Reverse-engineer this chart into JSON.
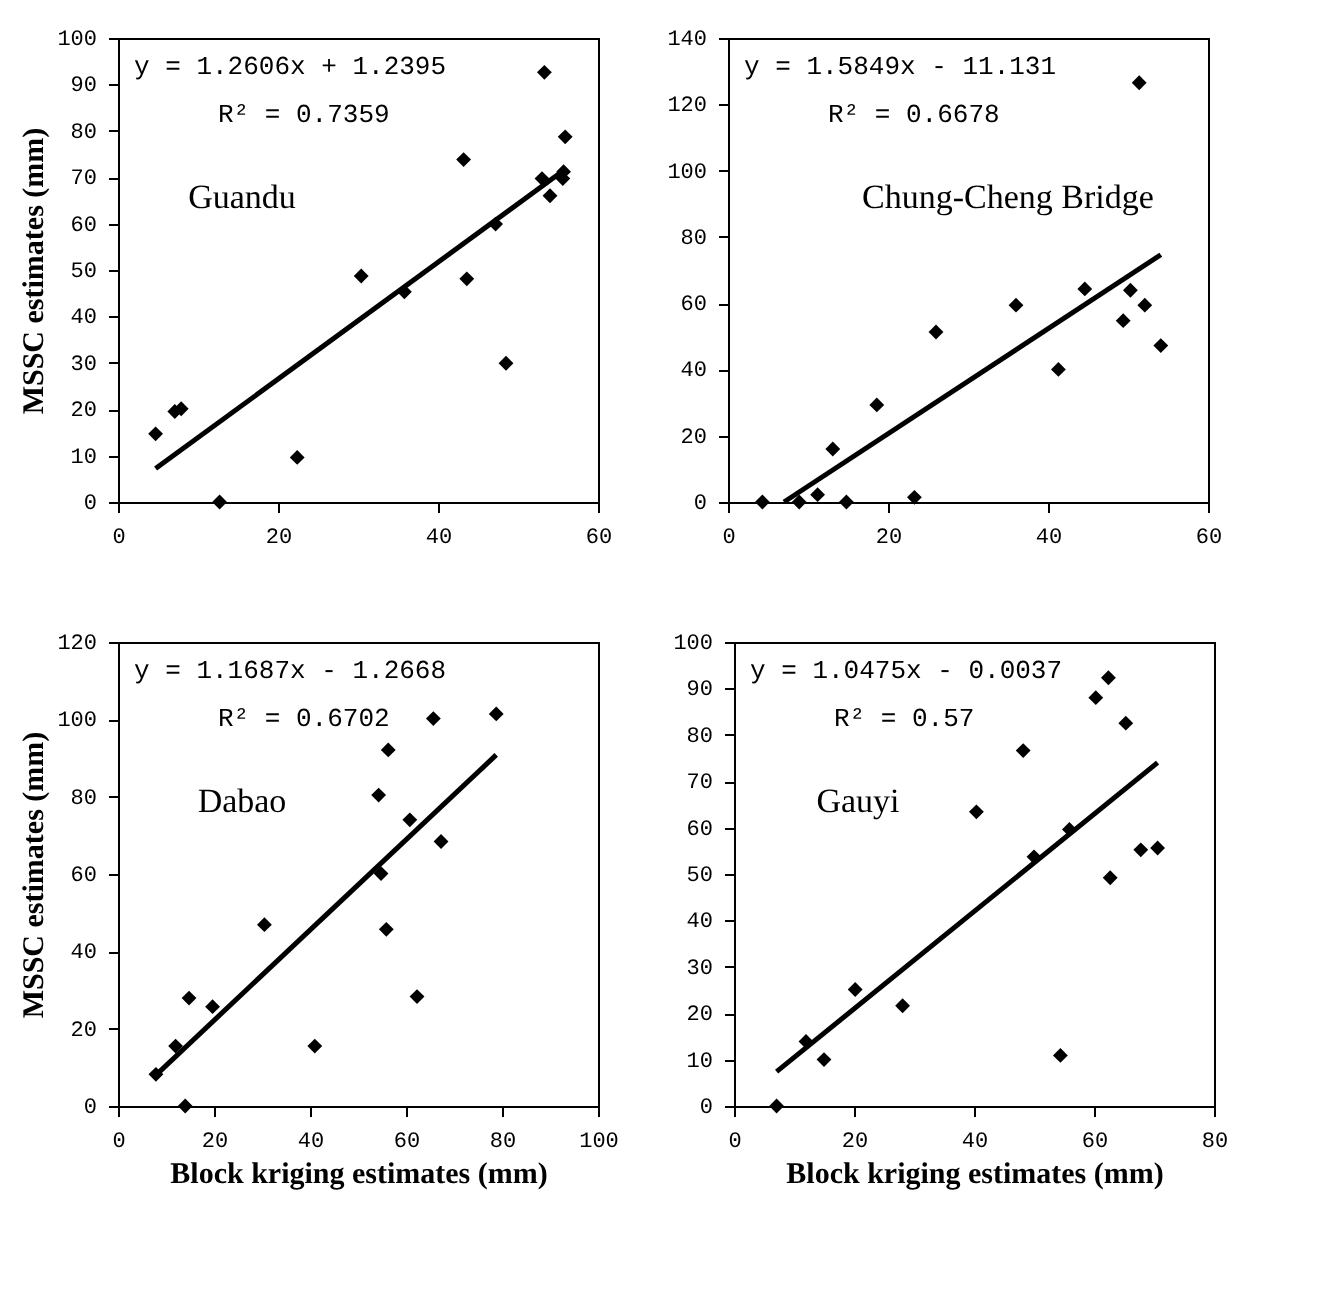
{
  "chart_data": [
    {
      "type": "scatter",
      "ylabel": "MSSC estimates (mm)",
      "xlim": [
        0,
        60
      ],
      "xticks": [
        0,
        20,
        40,
        60
      ],
      "ylim": [
        0,
        100
      ],
      "yticks": [
        0,
        10,
        20,
        30,
        40,
        50,
        60,
        70,
        80,
        90,
        100
      ],
      "grid": false,
      "annotations": [
        "y = 1.2606x + 1.2395",
        "R² = 0.7359",
        "Guandu"
      ],
      "series": [
        {
          "color": "#000000",
          "marker": "diamond",
          "x": [
            4.7,
            7.1,
            7.9,
            12.7,
            22.4,
            30.4,
            35.8,
            43.2,
            43.6,
            47.2,
            48.5,
            53.3,
            53.0,
            54.0,
            55.6,
            55.7,
            55.9
          ],
          "values": [
            14.7,
            19.5,
            20.1,
            0,
            9.6,
            48.7,
            45.3,
            73.8,
            48.1,
            59.9,
            29.9,
            92.6,
            69.7,
            66.0,
            69.7,
            71.2,
            78.7
          ]
        },
        {
          "type": "line",
          "marker": "none",
          "color": "#000000",
          "x": [
            4.7,
            55.9
          ],
          "values": [
            7.2,
            71.7
          ]
        }
      ]
    },
    {
      "type": "scatter",
      "xlim": [
        0,
        60
      ],
      "xticks": [
        0,
        20,
        40,
        60
      ],
      "ylim": [
        0,
        140
      ],
      "yticks": [
        0,
        20,
        40,
        60,
        80,
        100,
        120,
        140
      ],
      "grid": false,
      "annotations": [
        "y = 1.5849x - 11.131",
        "R² = 0.6678",
        "Chung-Cheng Bridge"
      ],
      "series": [
        {
          "color": "#000000",
          "marker": "diamond",
          "x": [
            4.3,
            8.9,
            11.2,
            13.1,
            14.8,
            18.6,
            23.3,
            26.0,
            36.0,
            41.3,
            44.6,
            49.4,
            50.3,
            51.4,
            52.1,
            54.1
          ],
          "values": [
            0,
            0,
            2.2,
            16.0,
            0,
            29.3,
            1.4,
            51.3,
            59.4,
            40.0,
            64.3,
            54.7,
            63.9,
            126.5,
            59.4,
            47.2
          ]
        },
        {
          "type": "line",
          "marker": "none",
          "color": "#000000",
          "x": [
            7.0,
            54.1
          ],
          "values": [
            0.0,
            74.6
          ]
        }
      ]
    },
    {
      "type": "scatter",
      "xlabel": "Block kriging estimates (mm)",
      "ylabel": "MSSC estimates (mm)",
      "xlim": [
        0,
        100
      ],
      "xticks": [
        0,
        20,
        40,
        60,
        80,
        100
      ],
      "ylim": [
        0,
        120
      ],
      "yticks": [
        0,
        20,
        40,
        60,
        80,
        100,
        120
      ],
      "grid": false,
      "annotations": [
        "y = 1.1687x - 1.2668",
        "R² = 0.6702",
        "Dabao"
      ],
      "series": [
        {
          "color": "#000000",
          "marker": "diamond",
          "x": [
            7.9,
            12.0,
            14.0,
            14.8,
            19.7,
            30.5,
            41.0,
            54.3,
            54.8,
            55.9,
            56.3,
            60.8,
            62.3,
            65.7,
            67.3,
            78.8
          ],
          "values": [
            8.2,
            15.5,
            0,
            27.9,
            25.7,
            46.9,
            15.5,
            80.4,
            60.1,
            45.7,
            92.1,
            74.0,
            28.3,
            100.2,
            68.4,
            101.4
          ]
        },
        {
          "type": "line",
          "marker": "none",
          "color": "#000000",
          "x": [
            7.9,
            78.8
          ],
          "values": [
            8.0,
            90.8
          ]
        }
      ]
    },
    {
      "type": "scatter",
      "xlabel": "Block kriging estimates (mm)",
      "xlim": [
        0,
        80
      ],
      "xticks": [
        0,
        20,
        40,
        60,
        80
      ],
      "ylim": [
        0,
        100
      ],
      "yticks": [
        0,
        10,
        20,
        30,
        40,
        50,
        60,
        70,
        80,
        90,
        100
      ],
      "grid": false,
      "annotations": [
        "y = 1.0475x - 0.0037",
        "R² = 0.57",
        "Gauyi"
      ],
      "series": [
        {
          "color": "#000000",
          "marker": "diamond",
          "x": [
            7.1,
            12.0,
            15.0,
            20.2,
            28.1,
            40.4,
            48.2,
            50.0,
            54.4,
            55.9,
            60.3,
            62.4,
            62.7,
            65.3,
            67.8,
            70.6
          ],
          "values": [
            0,
            13.9,
            10.0,
            25.1,
            21.6,
            63.4,
            76.6,
            53.7,
            10.9,
            59.6,
            88.0,
            92.3,
            49.2,
            82.5,
            55.2,
            55.6
          ]
        },
        {
          "type": "line",
          "marker": "none",
          "color": "#000000",
          "x": [
            7.1,
            70.6
          ],
          "values": [
            7.4,
            74.0
          ]
        }
      ]
    }
  ]
}
